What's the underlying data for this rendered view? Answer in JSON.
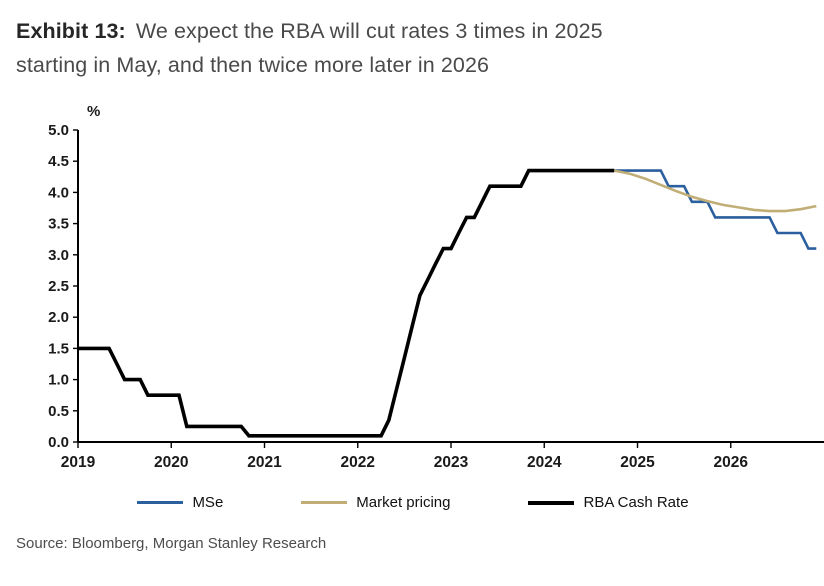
{
  "title": {
    "prefix": "Exhibit 13:",
    "line1": "We expect the RBA will cut rates 3 times in 2025",
    "line2": "starting in May, and then twice more later in 2026"
  },
  "source": "Source: Bloomberg, Morgan Stanley Research",
  "chart_data": {
    "type": "line",
    "title": "Exhibit 13: We expect the RBA will cut rates 3 times in 2025 starting in May, and then twice more later in 2026",
    "ylabel": "%",
    "xlabel": "",
    "ylim": [
      0.0,
      5.0
    ],
    "ytick_step": 0.5,
    "xlim": [
      2019,
      2027
    ],
    "xticks": [
      2019,
      2020,
      2021,
      2022,
      2023,
      2024,
      2025,
      2026
    ],
    "grid": false,
    "legend_position": "bottom",
    "axis_color": "#000000",
    "tick_label_color": "#1a1a1a",
    "series": [
      {
        "name": "MSe",
        "color": "#2b5f9e",
        "width": 2.6,
        "points": [
          [
            2024.75,
            4.35
          ],
          [
            2025.25,
            4.35
          ],
          [
            2025.333,
            4.1
          ],
          [
            2025.5,
            4.1
          ],
          [
            2025.583,
            3.85
          ],
          [
            2025.75,
            3.85
          ],
          [
            2025.833,
            3.6
          ],
          [
            2026.417,
            3.6
          ],
          [
            2026.5,
            3.35
          ],
          [
            2026.75,
            3.35
          ],
          [
            2026.833,
            3.1
          ],
          [
            2026.917,
            3.1
          ]
        ]
      },
      {
        "name": "Market pricing",
        "color": "#c1ae77",
        "width": 2.6,
        "points": [
          [
            2024.75,
            4.35
          ],
          [
            2024.917,
            4.3
          ],
          [
            2025.083,
            4.22
          ],
          [
            2025.25,
            4.12
          ],
          [
            2025.417,
            4.02
          ],
          [
            2025.583,
            3.93
          ],
          [
            2025.75,
            3.86
          ],
          [
            2025.917,
            3.8
          ],
          [
            2026.083,
            3.76
          ],
          [
            2026.25,
            3.72
          ],
          [
            2026.417,
            3.7
          ],
          [
            2026.583,
            3.7
          ],
          [
            2026.75,
            3.73
          ],
          [
            2026.917,
            3.78
          ]
        ]
      },
      {
        "name": "RBA Cash Rate",
        "color": "#000000",
        "width": 3.6,
        "points": [
          [
            2019.0,
            1.5
          ],
          [
            2019.333,
            1.5
          ],
          [
            2019.417,
            1.25
          ],
          [
            2019.5,
            1.0
          ],
          [
            2019.667,
            1.0
          ],
          [
            2019.75,
            0.75
          ],
          [
            2020.083,
            0.75
          ],
          [
            2020.167,
            0.25
          ],
          [
            2020.75,
            0.25
          ],
          [
            2020.833,
            0.1
          ],
          [
            2022.25,
            0.1
          ],
          [
            2022.333,
            0.35
          ],
          [
            2022.417,
            0.85
          ],
          [
            2022.5,
            1.35
          ],
          [
            2022.583,
            1.85
          ],
          [
            2022.667,
            2.35
          ],
          [
            2022.75,
            2.6
          ],
          [
            2022.833,
            2.85
          ],
          [
            2022.917,
            3.1
          ],
          [
            2023.0,
            3.1
          ],
          [
            2023.083,
            3.35
          ],
          [
            2023.167,
            3.6
          ],
          [
            2023.25,
            3.6
          ],
          [
            2023.333,
            3.85
          ],
          [
            2023.417,
            4.1
          ],
          [
            2023.75,
            4.1
          ],
          [
            2023.833,
            4.35
          ],
          [
            2024.75,
            4.35
          ]
        ]
      }
    ]
  }
}
